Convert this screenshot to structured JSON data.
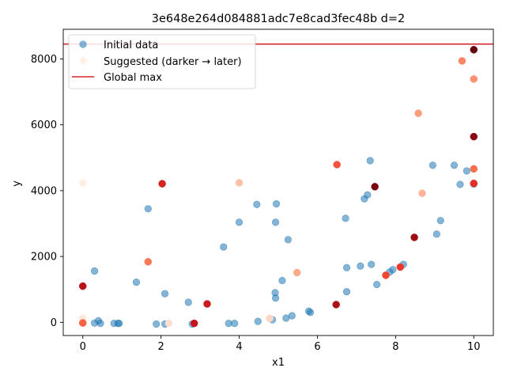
{
  "chart_data": {
    "type": "scatter",
    "title": "3e648e264d084881adc7e8cad3fec48b d=2",
    "xlabel": "x1",
    "ylabel": "y",
    "xlim": [
      -0.5,
      10.5
    ],
    "ylim": [
      -400,
      8900
    ],
    "x_ticks": [
      0,
      2,
      4,
      6,
      8,
      10
    ],
    "y_ticks": [
      0,
      2000,
      4000,
      6000,
      8000
    ],
    "grid": false,
    "legend_position": "top-left",
    "legend": {
      "initial": "Initial data",
      "suggested": "Suggested (darker → later)",
      "global_max": "Global max"
    },
    "colors": {
      "initial": "#1f77b4",
      "global_max": "#d62728",
      "suggested_light": "#fff0e8",
      "suggested_dark": "#67000d"
    },
    "global_max": 8450,
    "initial_points": [
      [
        0.3,
        1560
      ],
      [
        0.3,
        -20
      ],
      [
        0.4,
        50
      ],
      [
        0.45,
        -30
      ],
      [
        0.8,
        -30
      ],
      [
        0.9,
        -30
      ],
      [
        0.93,
        -30
      ],
      [
        1.37,
        1220
      ],
      [
        1.67,
        3450
      ],
      [
        1.88,
        -50
      ],
      [
        2.1,
        870
      ],
      [
        2.1,
        -50
      ],
      [
        2.7,
        610
      ],
      [
        2.8,
        -50
      ],
      [
        3.6,
        2290
      ],
      [
        3.73,
        -30
      ],
      [
        3.88,
        -30
      ],
      [
        4.0,
        3040
      ],
      [
        4.45,
        3580
      ],
      [
        4.48,
        30
      ],
      [
        4.85,
        80
      ],
      [
        4.92,
        900
      ],
      [
        4.93,
        740
      ],
      [
        4.93,
        3040
      ],
      [
        4.95,
        3600
      ],
      [
        5.1,
        1270
      ],
      [
        5.2,
        130
      ],
      [
        5.25,
        2510
      ],
      [
        5.35,
        200
      ],
      [
        5.78,
        340
      ],
      [
        5.82,
        300
      ],
      [
        6.72,
        3160
      ],
      [
        6.75,
        1660
      ],
      [
        6.75,
        930
      ],
      [
        7.1,
        1710
      ],
      [
        7.2,
        3750
      ],
      [
        7.28,
        3870
      ],
      [
        7.35,
        4910
      ],
      [
        7.38,
        1760
      ],
      [
        7.52,
        1150
      ],
      [
        7.85,
        1530
      ],
      [
        7.93,
        1600
      ],
      [
        8.2,
        1760
      ],
      [
        8.95,
        4770
      ],
      [
        9.05,
        2680
      ],
      [
        9.15,
        3090
      ],
      [
        9.5,
        4770
      ],
      [
        9.65,
        4190
      ],
      [
        9.82,
        4600
      ],
      [
        10.0,
        4200
      ]
    ],
    "suggested_points": [
      [
        0.0,
        4230
      ],
      [
        0.0,
        120
      ],
      [
        2.2,
        -30
      ],
      [
        4.78,
        120
      ],
      [
        0.0,
        -10
      ],
      [
        4.0,
        4240
      ],
      [
        8.68,
        3920
      ],
      [
        5.48,
        1510
      ],
      [
        8.58,
        6350
      ],
      [
        10.0,
        7390
      ],
      [
        9.7,
        7940
      ],
      [
        1.67,
        1840
      ],
      [
        10.0,
        4660
      ],
      [
        0.0,
        -20
      ],
      [
        6.5,
        4790
      ],
      [
        7.75,
        1430
      ],
      [
        8.12,
        1680
      ],
      [
        10.0,
        4220
      ],
      [
        2.03,
        4210
      ],
      [
        3.18,
        560
      ],
      [
        2.85,
        -30
      ],
      [
        0.0,
        1100
      ],
      [
        6.48,
        540
      ],
      [
        8.48,
        2580
      ],
      [
        10.0,
        5640
      ],
      [
        7.47,
        4120
      ],
      [
        10.0,
        8280
      ]
    ]
  }
}
